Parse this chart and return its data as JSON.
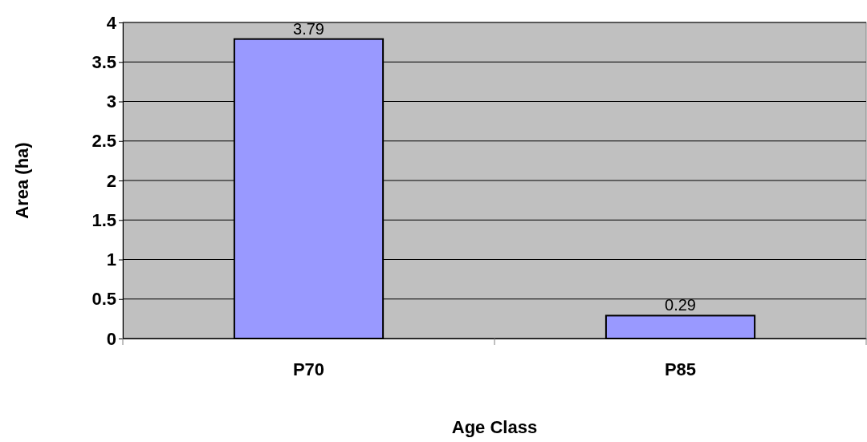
{
  "chart_data": {
    "type": "bar",
    "xlabel": "Age Class",
    "ylabel": "Area (ha)",
    "categories": [
      "P70",
      "P85"
    ],
    "values": [
      3.79,
      0.29
    ],
    "color": "#9999ff",
    "ylim": [
      0,
      4
    ],
    "yticks": [
      0,
      0.5,
      1,
      1.5,
      2,
      2.5,
      3,
      3.5,
      4
    ],
    "grid": "y",
    "data_labels": true
  }
}
